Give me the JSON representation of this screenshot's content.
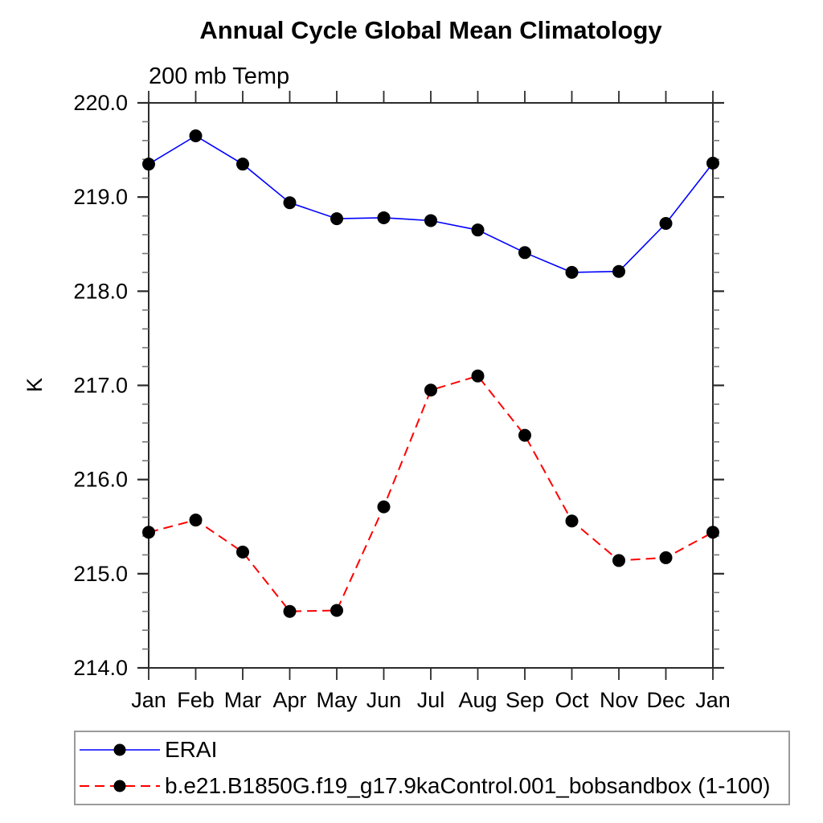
{
  "chart_data": {
    "type": "line",
    "title": "Annual Cycle Global Mean Climatology",
    "subtitle": "200 mb Temp",
    "ylabel": "K",
    "ylim": [
      214.0,
      220.0
    ],
    "y_major_step": 1.0,
    "y_minor_step": 0.2,
    "y_tick_decimals": 1,
    "grid": false,
    "legend_position": "bottom-left",
    "categories": [
      "Jan",
      "Feb",
      "Mar",
      "Apr",
      "May",
      "Jun",
      "Jul",
      "Aug",
      "Sep",
      "Oct",
      "Nov",
      "Dec",
      "Jan"
    ],
    "series": [
      {
        "name": "ERAI",
        "color": "#0000ff",
        "line_style": "solid",
        "marker": "filled-circle",
        "marker_color": "#000000",
        "values": [
          219.35,
          219.65,
          219.35,
          218.94,
          218.77,
          218.78,
          218.75,
          218.65,
          218.41,
          218.2,
          218.21,
          218.72,
          219.36
        ]
      },
      {
        "name": "b.e21.B1850G.f19_g17.9kaControl.001_bobsandbox (1-100)",
        "color": "#ff0000",
        "line_style": "dashed",
        "marker": "filled-circle",
        "marker_color": "#000000",
        "values": [
          215.44,
          215.57,
          215.23,
          214.6,
          214.61,
          215.71,
          216.95,
          217.1,
          216.47,
          215.56,
          215.14,
          215.17,
          215.44
        ]
      }
    ]
  },
  "colors": {
    "axis": "#2b2b2b",
    "minor_tick": "#777777",
    "legend_border": "#9a9a9a",
    "background": "#ffffff"
  }
}
